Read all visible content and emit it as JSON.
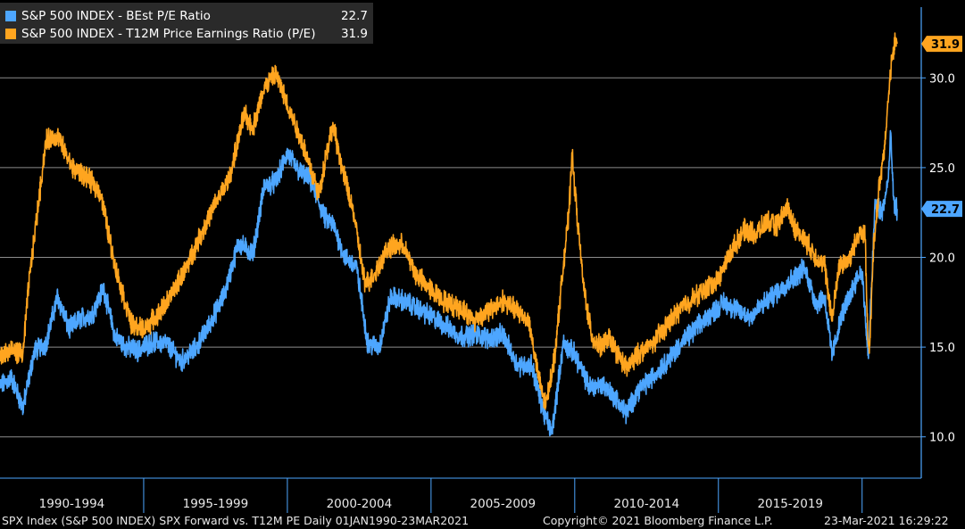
{
  "legend": {
    "items": [
      {
        "name": "S&P 500 INDEX - BEst P/E Ratio",
        "value": "22.7",
        "color": "#4da6ff"
      },
      {
        "name": "S&P 500 INDEX - T12M Price Earnings Ratio (P/E)",
        "value": "31.9",
        "color": "#ffa51f"
      }
    ]
  },
  "footer": {
    "description": "SPX Index (S&P 500 INDEX) SPX Forward vs. T12M PE  Daily 01JAN1990-23MAR2021",
    "copyright": "Copyright© 2021 Bloomberg Finance L.P.",
    "timestamp": "23-Mar-2021 16:29:22"
  },
  "colors": {
    "background": "#000000",
    "forward_pe": "#4da6ff",
    "trailing_pe": "#ffa51f",
    "gridline": "#8c8c8c",
    "axis": "#4da6ff"
  },
  "chart_data": {
    "type": "line",
    "x_range": [
      1990.0,
      2021.22
    ],
    "ylim": [
      8.0,
      33.5
    ],
    "y_ticks": [
      10.0,
      15.0,
      20.0,
      25.0,
      30.0
    ],
    "y_tick_labels": [
      "10.0",
      "15.0",
      "20.0",
      "25.0",
      "30.0"
    ],
    "y_axis_side": "right",
    "grid": "horizontal",
    "legend_position": "top-left",
    "periods": [
      "1990-1994",
      "1995-1999",
      "2000-2004",
      "2005-2009",
      "2010-2014",
      "2015-2019"
    ],
    "period_boundaries": [
      1995.0,
      2000.0,
      2005.0,
      2010.0,
      2015.0,
      2020.0
    ],
    "last_value_tags": [
      {
        "series": "S&P 500 INDEX - T12M Price Earnings Ratio (P/E)",
        "value": "31.9"
      },
      {
        "series": "S&P 500 INDEX - BEst P/E Ratio",
        "value": "22.7"
      }
    ],
    "series": [
      {
        "name": "S&P 500 INDEX - BEst P/E Ratio",
        "color": "#4da6ff",
        "points": [
          [
            1990.0,
            12.8
          ],
          [
            1990.4,
            13.3
          ],
          [
            1990.8,
            11.6
          ],
          [
            1991.2,
            14.8
          ],
          [
            1991.6,
            15.2
          ],
          [
            1992.0,
            17.8
          ],
          [
            1992.4,
            16.0
          ],
          [
            1992.8,
            16.6
          ],
          [
            1993.2,
            16.8
          ],
          [
            1993.6,
            18.3
          ],
          [
            1994.0,
            15.6
          ],
          [
            1994.4,
            15.0
          ],
          [
            1994.8,
            14.8
          ],
          [
            1995.3,
            15.3
          ],
          [
            1995.8,
            15.2
          ],
          [
            1996.3,
            14.2
          ],
          [
            1996.8,
            14.9
          ],
          [
            1997.3,
            16.3
          ],
          [
            1997.8,
            17.9
          ],
          [
            1998.3,
            20.8
          ],
          [
            1998.8,
            20.2
          ],
          [
            1999.2,
            24.0
          ],
          [
            1999.6,
            24.2
          ],
          [
            2000.0,
            25.8
          ],
          [
            2000.4,
            24.8
          ],
          [
            2000.8,
            24.3
          ],
          [
            2001.3,
            22.2
          ],
          [
            2001.6,
            21.8
          ],
          [
            2002.0,
            20.0
          ],
          [
            2002.4,
            19.5
          ],
          [
            2002.8,
            15.2
          ],
          [
            2003.2,
            15.0
          ],
          [
            2003.6,
            17.8
          ],
          [
            2004.0,
            17.6
          ],
          [
            2004.5,
            17.2
          ],
          [
            2005.0,
            16.7
          ],
          [
            2005.5,
            16.2
          ],
          [
            2006.0,
            15.6
          ],
          [
            2006.5,
            15.7
          ],
          [
            2007.0,
            15.5
          ],
          [
            2007.5,
            15.7
          ],
          [
            2008.0,
            14.0
          ],
          [
            2008.5,
            14.0
          ],
          [
            2008.9,
            11.5
          ],
          [
            2009.2,
            10.2
          ],
          [
            2009.6,
            15.2
          ],
          [
            2010.0,
            14.6
          ],
          [
            2010.5,
            12.8
          ],
          [
            2011.0,
            12.9
          ],
          [
            2011.4,
            12.2
          ],
          [
            2011.8,
            11.3
          ],
          [
            2012.2,
            12.6
          ],
          [
            2012.7,
            13.3
          ],
          [
            2013.2,
            14.2
          ],
          [
            2013.7,
            15.2
          ],
          [
            2014.2,
            16.0
          ],
          [
            2014.7,
            16.8
          ],
          [
            2015.2,
            17.5
          ],
          [
            2015.7,
            17.0
          ],
          [
            2016.1,
            16.7
          ],
          [
            2016.5,
            17.3
          ],
          [
            2017.0,
            18.0
          ],
          [
            2017.5,
            18.7
          ],
          [
            2018.0,
            19.4
          ],
          [
            2018.4,
            17.4
          ],
          [
            2018.7,
            17.8
          ],
          [
            2018.95,
            14.5
          ],
          [
            2019.3,
            16.8
          ],
          [
            2019.8,
            18.8
          ],
          [
            2020.0,
            19.2
          ],
          [
            2020.15,
            15.8
          ],
          [
            2020.22,
            14.3
          ],
          [
            2020.45,
            23.0
          ],
          [
            2020.7,
            22.5
          ],
          [
            2020.9,
            24.2
          ],
          [
            2021.0,
            26.8
          ],
          [
            2021.1,
            22.9
          ],
          [
            2021.22,
            22.7
          ]
        ]
      },
      {
        "name": "S&P 500 INDEX - T12M Price Earnings Ratio (P/E)",
        "color": "#ffa51f",
        "points": [
          [
            1990.0,
            14.5
          ],
          [
            1990.4,
            14.8
          ],
          [
            1990.8,
            14.6
          ],
          [
            1991.0,
            18.5
          ],
          [
            1991.3,
            22.5
          ],
          [
            1991.6,
            26.5
          ],
          [
            1992.0,
            26.8
          ],
          [
            1992.5,
            25.0
          ],
          [
            1993.0,
            24.5
          ],
          [
            1993.5,
            23.6
          ],
          [
            1994.0,
            19.5
          ],
          [
            1994.3,
            17.8
          ],
          [
            1994.6,
            16.2
          ],
          [
            1995.0,
            16.0
          ],
          [
            1995.5,
            16.8
          ],
          [
            1996.0,
            18.0
          ],
          [
            1996.5,
            19.5
          ],
          [
            1997.0,
            21.3
          ],
          [
            1997.5,
            23.0
          ],
          [
            1998.0,
            24.5
          ],
          [
            1998.5,
            28.0
          ],
          [
            1998.8,
            27.2
          ],
          [
            1999.2,
            29.5
          ],
          [
            1999.6,
            30.2
          ],
          [
            2000.0,
            28.5
          ],
          [
            2000.5,
            26.5
          ],
          [
            2000.8,
            25.0
          ],
          [
            2001.1,
            23.5
          ],
          [
            2001.4,
            26.2
          ],
          [
            2001.6,
            27.3
          ],
          [
            2001.9,
            25.0
          ],
          [
            2002.3,
            22.5
          ],
          [
            2002.7,
            18.5
          ],
          [
            2003.0,
            19.0
          ],
          [
            2003.5,
            20.5
          ],
          [
            2004.0,
            20.7
          ],
          [
            2004.5,
            19.0
          ],
          [
            2005.0,
            18.2
          ],
          [
            2005.5,
            17.5
          ],
          [
            2006.0,
            17.2
          ],
          [
            2006.5,
            16.5
          ],
          [
            2007.0,
            17.0
          ],
          [
            2007.5,
            17.6
          ],
          [
            2008.0,
            17.0
          ],
          [
            2008.4,
            16.5
          ],
          [
            2008.8,
            12.8
          ],
          [
            2009.0,
            11.8
          ],
          [
            2009.3,
            14.5
          ],
          [
            2009.6,
            19.5
          ],
          [
            2009.8,
            22.5
          ],
          [
            2009.9,
            25.8
          ],
          [
            2010.1,
            22.0
          ],
          [
            2010.3,
            18.5
          ],
          [
            2010.6,
            15.5
          ],
          [
            2010.9,
            15.0
          ],
          [
            2011.2,
            15.5
          ],
          [
            2011.5,
            14.6
          ],
          [
            2011.8,
            13.8
          ],
          [
            2012.2,
            14.6
          ],
          [
            2012.7,
            15.2
          ],
          [
            2013.2,
            16.2
          ],
          [
            2013.7,
            17.2
          ],
          [
            2014.2,
            17.8
          ],
          [
            2014.7,
            18.4
          ],
          [
            2015.0,
            18.8
          ],
          [
            2015.5,
            20.5
          ],
          [
            2015.9,
            21.5
          ],
          [
            2016.3,
            21.3
          ],
          [
            2016.7,
            22.0
          ],
          [
            2017.0,
            21.7
          ],
          [
            2017.4,
            22.8
          ],
          [
            2017.7,
            21.5
          ],
          [
            2018.0,
            21.0
          ],
          [
            2018.4,
            20.0
          ],
          [
            2018.7,
            19.5
          ],
          [
            2018.95,
            16.5
          ],
          [
            2019.2,
            19.5
          ],
          [
            2019.6,
            20.0
          ],
          [
            2019.9,
            21.5
          ],
          [
            2020.1,
            21.3
          ],
          [
            2020.2,
            15.5
          ],
          [
            2020.25,
            14.6
          ],
          [
            2020.4,
            20.5
          ],
          [
            2020.6,
            24.0
          ],
          [
            2020.8,
            26.5
          ],
          [
            2021.0,
            30.5
          ],
          [
            2021.15,
            32.0
          ],
          [
            2021.22,
            31.9
          ]
        ]
      }
    ]
  }
}
